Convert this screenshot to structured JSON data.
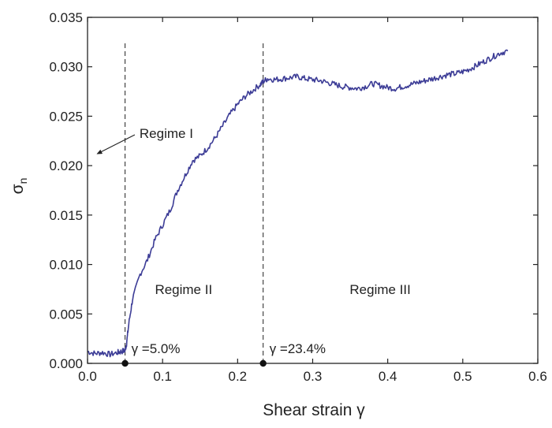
{
  "chart_data": {
    "type": "line",
    "xlabel": "Shear strain γ",
    "ylabel": "σ",
    "ylabel_sub": "n",
    "xlim": [
      0.0,
      0.6
    ],
    "ylim": [
      0.0,
      0.035
    ],
    "x_ticks": [
      "0.0",
      "0.1",
      "0.2",
      "0.3",
      "0.4",
      "0.5",
      "0.6"
    ],
    "y_ticks": [
      "0.000",
      "0.005",
      "0.010",
      "0.015",
      "0.020",
      "0.025",
      "0.030",
      "0.035"
    ],
    "grid": false,
    "legend": "none",
    "series": [
      {
        "color": "#3c3c96",
        "x": [
          0.0,
          0.01,
          0.02,
          0.03,
          0.04,
          0.045,
          0.05,
          0.052,
          0.055,
          0.06,
          0.07,
          0.08,
          0.09,
          0.1,
          0.11,
          0.12,
          0.13,
          0.14,
          0.15,
          0.16,
          0.17,
          0.18,
          0.19,
          0.2,
          0.21,
          0.22,
          0.23,
          0.234,
          0.24,
          0.25,
          0.26,
          0.27,
          0.28,
          0.29,
          0.3,
          0.31,
          0.32,
          0.33,
          0.34,
          0.35,
          0.36,
          0.37,
          0.38,
          0.39,
          0.4,
          0.41,
          0.42,
          0.43,
          0.44,
          0.45,
          0.46,
          0.47,
          0.48,
          0.49,
          0.5,
          0.51,
          0.52,
          0.53,
          0.54,
          0.55,
          0.56
        ],
        "y": [
          0.0012,
          0.001,
          0.0011,
          0.0009,
          0.0011,
          0.0012,
          0.0013,
          0.002,
          0.004,
          0.0065,
          0.009,
          0.0105,
          0.0125,
          0.014,
          0.0155,
          0.0175,
          0.019,
          0.0205,
          0.021,
          0.0218,
          0.0228,
          0.024,
          0.0252,
          0.0262,
          0.027,
          0.0276,
          0.0282,
          0.0285,
          0.0288,
          0.0287,
          0.0288,
          0.0289,
          0.029,
          0.0288,
          0.0287,
          0.0286,
          0.0284,
          0.0282,
          0.028,
          0.0279,
          0.0278,
          0.028,
          0.0283,
          0.0281,
          0.0279,
          0.0278,
          0.028,
          0.0282,
          0.0284,
          0.0286,
          0.0288,
          0.029,
          0.0292,
          0.0293,
          0.0295,
          0.0298,
          0.0302,
          0.0306,
          0.031,
          0.0314,
          0.0316
        ]
      }
    ],
    "vlines": [
      0.05,
      0.234
    ],
    "markers": [
      {
        "x": 0.05,
        "y": 0.0,
        "label": "γ =5.0%"
      },
      {
        "x": 0.234,
        "y": 0.0,
        "label": "γ =23.4%"
      }
    ],
    "annotations": [
      {
        "text": "Regime I",
        "x": 0.105,
        "y": 0.0228,
        "arrow_to": [
          0.013,
          0.0212
        ]
      },
      {
        "text": "Regime II",
        "x": 0.128,
        "y": 0.007
      },
      {
        "text": "Regime III",
        "x": 0.39,
        "y": 0.007
      }
    ]
  }
}
